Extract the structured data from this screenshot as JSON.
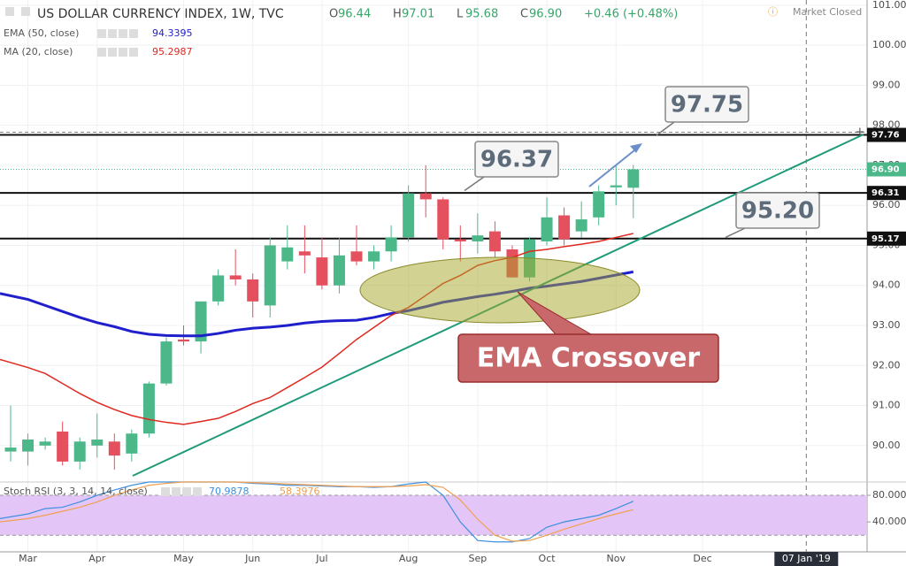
{
  "chart_data": [
    {
      "type": "candlestick",
      "title": "US DOLLAR CURRENCY INDEX, 1W, TVC",
      "header": [
        {
          "label": "O",
          "value": "96.44"
        },
        {
          "label": "H",
          "value": "97.01"
        },
        {
          "label": "L",
          "value": "95.68"
        },
        {
          "label": "C",
          "value": "96.90"
        }
      ],
      "change": "+0.46 (+0.48%)",
      "status": "Market Closed",
      "categories": [
        null,
        "Mar",
        null,
        null,
        null,
        "Apr",
        null,
        null,
        null,
        null,
        "May",
        null,
        null,
        null,
        "Jun",
        null,
        null,
        null,
        "Jul",
        null,
        null,
        null,
        null,
        "Aug",
        null,
        null,
        null,
        "Sep",
        null,
        null,
        null,
        "Oct",
        null,
        null,
        null,
        "Nov",
        null,
        null,
        null,
        null,
        "Dec",
        null,
        null,
        null,
        null,
        null,
        "07 Jan '19"
      ],
      "open": [
        89.85,
        89.85,
        90.0,
        90.35,
        89.6,
        90.0,
        90.1,
        89.8,
        90.3,
        91.55,
        92.65,
        92.6,
        93.6,
        94.25,
        94.15,
        93.5,
        94.6,
        94.85,
        94.7,
        94.0,
        94.85,
        94.6,
        94.85,
        95.2,
        96.3,
        96.15,
        95.15,
        95.1,
        95.35,
        94.9,
        94.2,
        95.1,
        95.75,
        95.35,
        95.7,
        96.45,
        96.44,
        null,
        null,
        null,
        null,
        null,
        null,
        null,
        null,
        null,
        null
      ],
      "high": [
        91.0,
        90.3,
        90.2,
        90.6,
        90.2,
        90.8,
        90.3,
        90.4,
        91.6,
        92.7,
        93.0,
        93.6,
        94.4,
        94.9,
        94.3,
        95.2,
        95.5,
        95.5,
        95.2,
        95.2,
        95.5,
        95.0,
        95.5,
        96.5,
        97.0,
        96.2,
        95.5,
        95.8,
        95.6,
        95.0,
        95.2,
        96.2,
        95.95,
        96.1,
        96.5,
        97.0,
        97.01,
        null,
        null,
        null,
        null,
        null,
        null,
        null,
        null,
        null,
        null
      ],
      "low": [
        89.6,
        89.5,
        89.9,
        89.5,
        89.4,
        89.7,
        89.4,
        89.6,
        90.2,
        91.5,
        92.5,
        92.3,
        93.5,
        94.0,
        93.2,
        93.2,
        94.4,
        94.3,
        93.9,
        93.8,
        94.5,
        94.4,
        94.6,
        95.1,
        95.7,
        94.9,
        94.6,
        94.8,
        94.7,
        94.2,
        94.1,
        95.0,
        95.0,
        95.2,
        95.5,
        96.0,
        95.68,
        null,
        null,
        null,
        null,
        null,
        null,
        null,
        null,
        null,
        null
      ],
      "close": [
        89.95,
        90.15,
        90.1,
        89.6,
        90.1,
        90.15,
        89.75,
        90.3,
        91.55,
        92.6,
        92.6,
        93.6,
        94.25,
        94.15,
        93.6,
        95.0,
        94.95,
        94.75,
        94.0,
        94.75,
        94.6,
        94.85,
        95.2,
        96.3,
        96.15,
        95.15,
        95.1,
        95.25,
        94.85,
        94.2,
        95.15,
        95.7,
        95.15,
        95.65,
        96.35,
        96.5,
        96.9,
        null,
        null,
        null,
        null,
        null,
        null,
        null,
        null,
        null,
        null
      ],
      "up_color": "#4cb88a",
      "down_color": "#e5505f",
      "overlays": [
        {
          "name": "EMA (50, close)",
          "color": "#1f1fcc",
          "values": [
            93.8,
            93.65,
            93.5,
            93.35,
            93.2,
            93.07,
            92.97,
            92.85,
            92.78,
            92.75,
            92.74,
            92.74,
            92.8,
            92.88,
            92.93,
            92.96,
            93.0,
            93.06,
            93.1,
            93.12,
            93.13,
            93.2,
            93.3,
            93.37,
            93.47,
            93.58,
            93.65,
            93.72,
            93.78,
            93.85,
            93.93,
            93.98,
            94.04,
            94.1,
            94.18,
            94.26,
            94.3395,
            null,
            null,
            null,
            null,
            null,
            null,
            null,
            null,
            null,
            null
          ]
        },
        {
          "name": "MA (20, close)",
          "color": "#e0281f",
          "values": [
            92.15,
            91.95,
            91.8,
            91.55,
            91.3,
            91.08,
            90.9,
            90.75,
            90.65,
            90.58,
            90.53,
            90.6,
            90.68,
            90.85,
            91.05,
            91.2,
            91.45,
            91.7,
            91.96,
            92.3,
            92.65,
            92.95,
            93.25,
            93.45,
            93.75,
            94.05,
            94.25,
            94.5,
            94.62,
            94.7,
            94.85,
            94.9,
            94.97,
            95.03,
            95.1,
            95.2,
            95.2987,
            null,
            null,
            null,
            null,
            null,
            null,
            null,
            null,
            null,
            null
          ]
        }
      ],
      "ylim": [
        89.09,
        101.13
      ],
      "yticks": [
        {
          "value": 90,
          "label": "90.00"
        },
        {
          "value": 91,
          "label": "91.00"
        },
        {
          "value": 92,
          "label": "92.00"
        },
        {
          "value": 93,
          "label": "93.00"
        },
        {
          "value": 94,
          "label": "94.00"
        },
        {
          "value": 95,
          "label": "95.00"
        },
        {
          "value": 96,
          "label": "96.00"
        },
        {
          "value": 97,
          "label": "97.00"
        },
        {
          "value": 98,
          "label": "98.00"
        },
        {
          "value": 99,
          "label": "99.00"
        },
        {
          "value": 100,
          "label": "100.00"
        },
        {
          "value": 101,
          "label": "101.00"
        }
      ],
      "grid": true,
      "hlines": [
        97.76,
        96.31,
        95.17
      ],
      "last_price": {
        "value": 96.9,
        "label": "96.90"
      },
      "annotations": [
        97.75,
        96.37,
        {
          "value": 95.2,
          "label": "95.20"
        }
      ],
      "callout": "EMA Crossover"
    },
    {
      "type": "line",
      "title": "Stoch RSI (3, 3, 14, 14, close)",
      "series": [
        {
          "color": "#3d8fe0",
          "values": [
            45,
            52,
            60,
            62,
            70,
            80,
            88,
            95,
            100,
            100,
            100,
            100,
            100,
            100,
            98,
            97,
            95,
            95,
            94,
            93,
            93,
            92,
            93,
            97,
            100,
            80,
            40,
            12,
            10,
            10,
            15,
            32,
            40,
            45,
            50,
            60,
            70.9878
          ]
        },
        {
          "color": "#f0a050",
          "values": [
            40,
            45,
            50,
            56,
            62,
            70,
            80,
            88,
            95,
            98,
            100,
            100,
            100,
            100,
            99,
            98,
            97,
            96,
            95,
            94,
            93,
            93,
            93,
            94,
            96,
            92,
            73,
            44,
            20,
            11,
            12,
            20,
            29,
            37,
            45,
            52,
            58.3976
          ]
        }
      ],
      "band": [
        20,
        80
      ],
      "ylim": [
        -5,
        100
      ],
      "yticks": [
        {
          "value": 40,
          "label": "40.000"
        },
        {
          "value": 80,
          "label": "80.000"
        }
      ]
    }
  ]
}
